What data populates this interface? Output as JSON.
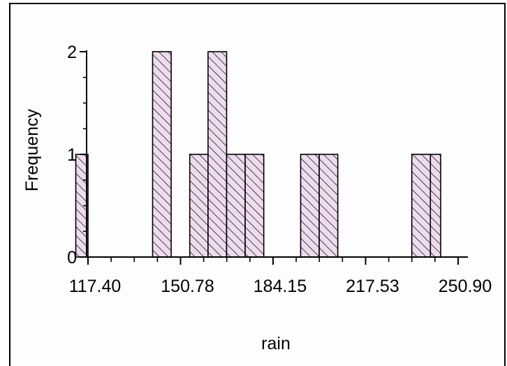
{
  "chart_data": {
    "type": "histogram",
    "xlabel": "rain",
    "ylabel": "Frequency",
    "x_tick_labels": [
      "117.40",
      "150.78",
      "184.15",
      "217.53",
      "250.90"
    ],
    "y_tick_labels": [
      "0",
      "1",
      "2"
    ],
    "xlim": [
      117.4,
      250.9
    ],
    "ylim": [
      0,
      2
    ],
    "bin_width": 6.675,
    "bins": [
      {
        "start": 113.0,
        "end": 117.4,
        "count": 1
      },
      {
        "start": 140.7,
        "end": 147.4,
        "count": 2
      },
      {
        "start": 154.1,
        "end": 160.7,
        "count": 1
      },
      {
        "start": 160.7,
        "end": 167.4,
        "count": 2
      },
      {
        "start": 167.4,
        "end": 174.1,
        "count": 1
      },
      {
        "start": 174.1,
        "end": 180.8,
        "count": 1
      },
      {
        "start": 194.1,
        "end": 200.8,
        "count": 1
      },
      {
        "start": 200.8,
        "end": 207.5,
        "count": 1
      },
      {
        "start": 234.2,
        "end": 240.9,
        "count": 1
      },
      {
        "start": 240.9,
        "end": 244.6,
        "count": 1
      }
    ],
    "bar_fill": "#eedcee",
    "hatch_color": "#000000",
    "grid": false,
    "legend": "none"
  }
}
